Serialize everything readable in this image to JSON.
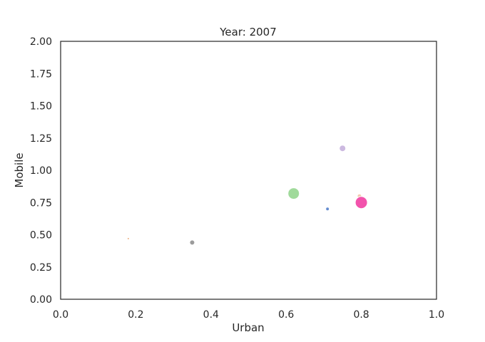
{
  "chart_data": {
    "type": "scatter",
    "title": "Year: 2007",
    "xlabel": "Urban",
    "ylabel": "Mobile",
    "xlim": [
      0,
      1
    ],
    "ylim": [
      0,
      2
    ],
    "xticks": [
      "0.0",
      "0.2",
      "0.4",
      "0.6",
      "0.8",
      "1.0"
    ],
    "yticks": [
      "0.00",
      "0.25",
      "0.50",
      "0.75",
      "1.00",
      "1.25",
      "1.50",
      "1.75",
      "2.00"
    ],
    "grid": false,
    "legend": false,
    "points": [
      {
        "x": 0.18,
        "y": 0.47,
        "size": 1.5,
        "color": "#e8a06a"
      },
      {
        "x": 0.35,
        "y": 0.44,
        "size": 3.5,
        "color": "#8a8a8a"
      },
      {
        "x": 0.62,
        "y": 0.82,
        "size": 8,
        "color": "#8fd48a"
      },
      {
        "x": 0.71,
        "y": 0.7,
        "size": 2.5,
        "color": "#4a78c8"
      },
      {
        "x": 0.75,
        "y": 1.17,
        "size": 4.5,
        "color": "#c3addb"
      },
      {
        "x": 0.795,
        "y": 0.8,
        "size": 3,
        "color": "#f0c0a0"
      },
      {
        "x": 0.8,
        "y": 0.75,
        "size": 8.5,
        "color": "#f0359e"
      }
    ]
  }
}
